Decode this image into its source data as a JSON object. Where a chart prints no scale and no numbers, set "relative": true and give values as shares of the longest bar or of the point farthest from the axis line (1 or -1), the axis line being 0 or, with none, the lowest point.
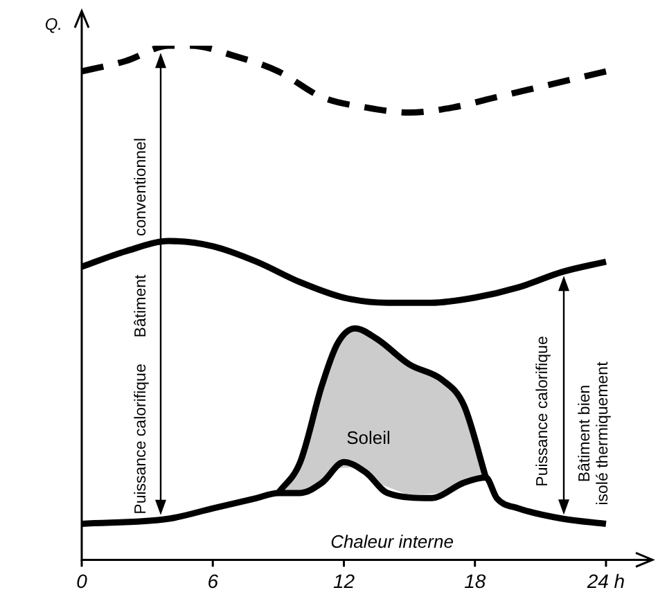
{
  "chart_data": {
    "type": "line",
    "relative": true,
    "ylabel": "Q.",
    "marker": "none",
    "grid": false,
    "legend": false,
    "xlim": [
      0,
      26
    ],
    "xticks": [
      0,
      6,
      12,
      18,
      {
        "value": 24,
        "label": "24 h"
      }
    ],
    "series": [
      {
        "line_style": "dashed",
        "color": "#000000",
        "x": [
          0,
          2,
          4,
          5,
          7,
          9,
          11,
          13,
          15,
          17,
          19,
          21,
          23,
          24
        ],
        "values": [
          0.95,
          0.97,
          1,
          1,
          0.98,
          0.95,
          0.9,
          0.88,
          0.87,
          0.88,
          0.9,
          0.92,
          0.94,
          0.95
        ]
      },
      {
        "line_style": "solid",
        "color": "#000000",
        "x": [
          0,
          2,
          4,
          6,
          8,
          10,
          12,
          14,
          16,
          18,
          20,
          22,
          24
        ],
        "values": [
          0.57,
          0.6,
          0.62,
          0.61,
          0.58,
          0.54,
          0.51,
          0.5,
          0.5,
          0.51,
          0.53,
          0.56,
          0.58
        ]
      },
      {
        "line_style": "solid",
        "color": "#000000",
        "x": [
          0,
          4,
          6,
          8,
          9,
          10,
          11,
          12,
          13,
          14,
          16,
          17.5,
          18.5,
          19,
          20,
          22,
          24
        ],
        "values": [
          0.07,
          0.08,
          0.1,
          0.12,
          0.13,
          0.13,
          0.15,
          0.19,
          0.17,
          0.13,
          0.12,
          0.15,
          0.16,
          0.12,
          0.1,
          0.08,
          0.07
        ]
      },
      {
        "type": "area",
        "color": "#cccccc",
        "x": [
          9,
          10,
          11,
          11.7,
          12.5,
          13.5,
          15,
          16.5,
          17.5,
          18.5
        ],
        "values": [
          0.13,
          0.19,
          0.34,
          0.42,
          0.45,
          0.43,
          0.38,
          0.35,
          0.3,
          0.16
        ]
      }
    ],
    "annotations": [
      "Puissance calorifique",
      "Bâtiment",
      "conventionnel",
      "Puissance calorifique",
      "Bâtiment bien\nisolé thermiquement",
      "Soleil",
      "Chaleur interne"
    ]
  }
}
